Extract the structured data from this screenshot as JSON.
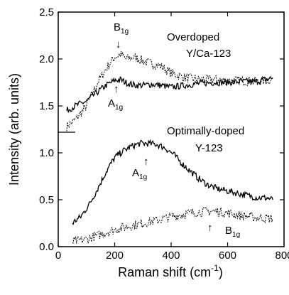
{
  "chart_data": {
    "type": "line",
    "title": "",
    "xlabel": "Raman shift (cm",
    "xlabel_sup": "-1",
    "xlabel_close": ")",
    "ylabel": "Intensity (arb. units)",
    "xlim": [
      0,
      800
    ],
    "ylim": [
      0,
      2.5
    ],
    "xticks": [
      "0",
      "200",
      "400",
      "600",
      "800"
    ],
    "yticks": [
      "0.0",
      "0.5",
      "1.0",
      "1.5",
      "2.0",
      "2.5"
    ],
    "grid": false,
    "annotations": {
      "top_label_line1": "Overdoped",
      "top_label_line2": "Y/Ca-123",
      "bottom_label_line1": "Optimally-doped",
      "bottom_label_line2": "Y-123",
      "b1g_symbol": "B",
      "a1g_symbol": "A",
      "g1_sub": "1g",
      "arrow_glyph": "↓",
      "arrow_up_glyph": "↑"
    },
    "series": [
      {
        "style": "dotted",
        "x": [
          30,
          60,
          100,
          140,
          170,
          200,
          220,
          240,
          270,
          300,
          330,
          360,
          400,
          450,
          500,
          550,
          600,
          650,
          700,
          760
        ],
        "y": [
          1.28,
          1.35,
          1.5,
          1.75,
          1.9,
          2.02,
          2.05,
          2.0,
          2.02,
          1.98,
          1.95,
          1.93,
          1.85,
          1.8,
          1.78,
          1.78,
          1.77,
          1.77,
          1.76,
          1.78
        ]
      },
      {
        "style": "solid",
        "x": [
          30,
          60,
          100,
          140,
          170,
          200,
          220,
          240,
          270,
          300,
          330,
          360,
          400,
          450,
          500,
          550,
          600,
          650,
          700,
          760
        ],
        "y": [
          1.45,
          1.5,
          1.55,
          1.65,
          1.72,
          1.77,
          1.78,
          1.75,
          1.72,
          1.72,
          1.73,
          1.72,
          1.7,
          1.72,
          1.74,
          1.75,
          1.75,
          1.76,
          1.76,
          1.8
        ]
      },
      {
        "style": "solid",
        "x": [
          50,
          80,
          110,
          140,
          170,
          200,
          230,
          260,
          290,
          320,
          350,
          380,
          410,
          440,
          470,
          500,
          530,
          560,
          590,
          620,
          650,
          680,
          710,
          740,
          760
        ],
        "y": [
          0.25,
          0.32,
          0.45,
          0.62,
          0.8,
          0.95,
          1.02,
          1.07,
          1.1,
          1.1,
          1.09,
          1.05,
          0.98,
          0.88,
          0.8,
          0.72,
          0.66,
          0.62,
          0.6,
          0.58,
          0.56,
          0.54,
          0.52,
          0.52,
          0.5
        ]
      },
      {
        "style": "dotted",
        "x": [
          50,
          100,
          150,
          200,
          250,
          300,
          350,
          400,
          450,
          500,
          550,
          600,
          650,
          700,
          760
        ],
        "y": [
          0.05,
          0.08,
          0.13,
          0.18,
          0.22,
          0.25,
          0.28,
          0.32,
          0.35,
          0.37,
          0.38,
          0.36,
          0.33,
          0.31,
          0.3
        ]
      }
    ]
  }
}
